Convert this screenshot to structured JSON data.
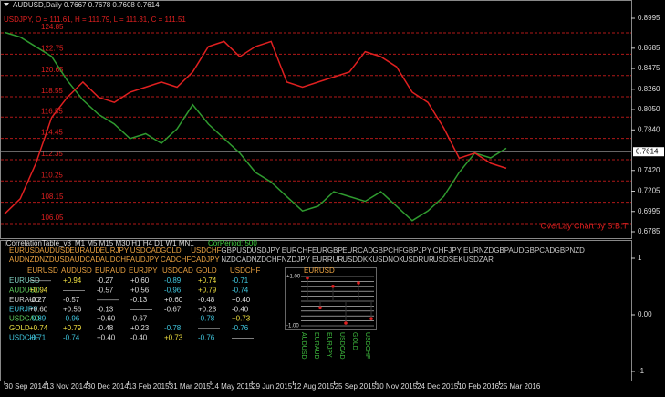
{
  "header": {
    "symbol_line": "AUDUSD,Daily  0.7667 0.7678 0.7608 0.7614",
    "overlay_line": "USDJPY, O = 111.61, H = 111.79, L = 111.31, C = 111.51",
    "credit": "OverLay Chart by S.B.T"
  },
  "main_chart": {
    "ylim": [
      0.6785,
      0.8995
    ],
    "yticks": [
      0.8995,
      0.8685,
      0.8475,
      {
        "value": 0.826,
        "label": "0.8260"
      },
      {
        "value": 0.805,
        "label": "0.8050"
      },
      {
        "value": 0.784,
        "label": "0.7840"
      },
      {
        "value": 0.742,
        "label": "0.7420"
      },
      0.7205,
      0.6995,
      0.6785
    ],
    "current_price": 0.7614,
    "overlay_ylim": [
      106.05,
      124.85
    ],
    "overlay_levels": [
      124.85,
      122.75,
      120.65,
      118.55,
      116.55,
      114.45,
      112.35,
      110.25,
      108.15,
      106.05
    ],
    "series": [
      {
        "color": "#2f9a2f",
        "axis": "price",
        "values": [
          0.885,
          0.88,
          0.87,
          0.86,
          0.835,
          0.815,
          0.8,
          0.79,
          0.775,
          0.78,
          0.77,
          0.785,
          0.81,
          0.79,
          0.775,
          0.76,
          0.74,
          0.73,
          0.715,
          0.7,
          0.705,
          0.72,
          0.715,
          0.71,
          0.72,
          0.705,
          0.69,
          0.7,
          0.715,
          0.74,
          0.76,
          0.755,
          0.765
        ]
      },
      {
        "color": "#e02020",
        "axis": "overlay",
        "values": [
          107.0,
          108.5,
          112.0,
          116.5,
          118.5,
          120.0,
          118.5,
          118.0,
          119.0,
          119.5,
          120.0,
          119.5,
          121.0,
          123.5,
          124.0,
          122.5,
          123.5,
          124.0,
          120.0,
          119.5,
          120.0,
          120.5,
          121.0,
          123.0,
          122.5,
          121.5,
          119.0,
          118.0,
          115.5,
          112.5,
          113.0,
          112.0,
          111.5
        ]
      }
    ]
  },
  "dates": [
    "30 Sep 2014",
    "13 Nov 2014",
    "30 Dec 2014",
    "13 Feb 2015",
    "31 Mar 2015",
    "14 May 2015",
    "29 Jun 2015",
    "12 Aug 2015",
    "25 Sep 2015",
    "10 Nov 2015",
    "24 Dec 2015",
    "10 Feb 2016",
    "25 Mar 2016"
  ],
  "indicator": {
    "name": "iCorrelationTable_v3",
    "timeframes": "M1  M5  M15 M30  H1  H4  D1  W1  MN1",
    "period": "CorPeriod:  500",
    "pairs_row1": [
      "EURUSD",
      "AUDUSD",
      "EURAUD",
      "EURJPY",
      "USDCAD",
      "GOLD",
      "USDCHF",
      "GBPUSD",
      "USDJPY",
      "EURCHF",
      "EURGBP",
      "EURCAD",
      "GBPCHF",
      "GBPJPY",
      "CHFJPY",
      "EURNZD",
      "GBPAUD",
      "GBPCAD",
      "GBPNZD"
    ],
    "pairs_row2": [
      "AUDNZD",
      "NZDUSD",
      "AUDCAD",
      "AUDCHF",
      "AUDJPY",
      "CADCHF",
      "CADJPY",
      "NZDCAD",
      "NZDCHF",
      "NZDJPY",
      "EURRUR",
      "USDDKK",
      "USDNOK",
      "USDRUR",
      "USDSEK",
      "USDZAR"
    ],
    "table": {
      "header": [
        "EURUSD",
        "AUDUSD",
        "EURAUD",
        "EURJPY",
        "USDCAD",
        "GOLD",
        "USDCHF"
      ],
      "rows": [
        {
          "label": "EURUSD",
          "color": "#7fd0c0",
          "cells": [
            "———",
            "+0.94",
            "-0.27",
            "+0.60",
            "-0.89",
            "+0.74",
            "-0.71"
          ]
        },
        {
          "label": "AUDUSD",
          "color": "#5fd05f",
          "cells": [
            "+0.94",
            "———",
            "-0.57",
            "+0.56",
            "-0.96",
            "+0.79",
            "-0.74"
          ]
        },
        {
          "label": "EURAUD",
          "color": "#c8c8c8",
          "cells": [
            "-0.27",
            "-0.57",
            "———",
            "-0.13",
            "+0.60",
            "-0.48",
            "+0.40"
          ]
        },
        {
          "label": "EURJPY",
          "color": "#40c8e0",
          "cells": [
            "+0.60",
            "+0.56",
            "-0.13",
            "———",
            "-0.67",
            "+0.23",
            "-0.40"
          ]
        },
        {
          "label": "USDCAD",
          "color": "#5fd05f",
          "cells": [
            "-0.89",
            "-0.96",
            "+0.60",
            "-0.67",
            "———",
            "-0.78",
            "+0.73"
          ]
        },
        {
          "label": "GOLD",
          "color": "#e8e040",
          "cells": [
            "+0.74",
            "+0.79",
            "-0.48",
            "+0.23",
            "-0.78",
            "———",
            "-0.76"
          ]
        },
        {
          "label": "USDCHF",
          "color": "#40c8e0",
          "cells": [
            "-0.71",
            "-0.74",
            "+0.40",
            "-0.40",
            "+0.73",
            "-0.76",
            "———"
          ]
        }
      ]
    },
    "mini_chart": {
      "title": "EURUSD",
      "labels": [
        "AUDUSD",
        "EURAUD",
        "EURJPY",
        "USDCAD",
        "GOLD",
        "USDCHF"
      ],
      "values": [
        0.94,
        -0.27,
        0.6,
        -0.89,
        0.74,
        -0.71
      ],
      "ylim": [
        -1,
        1
      ],
      "yticks": [
        {
          "value": 1,
          "label": "+1.00"
        },
        {
          "value": -1,
          "label": "-1.00"
        }
      ]
    },
    "ylim": [
      -1,
      1
    ],
    "yticks": [
      1,
      {
        "value": 0,
        "label": "0.00"
      },
      -1
    ]
  }
}
